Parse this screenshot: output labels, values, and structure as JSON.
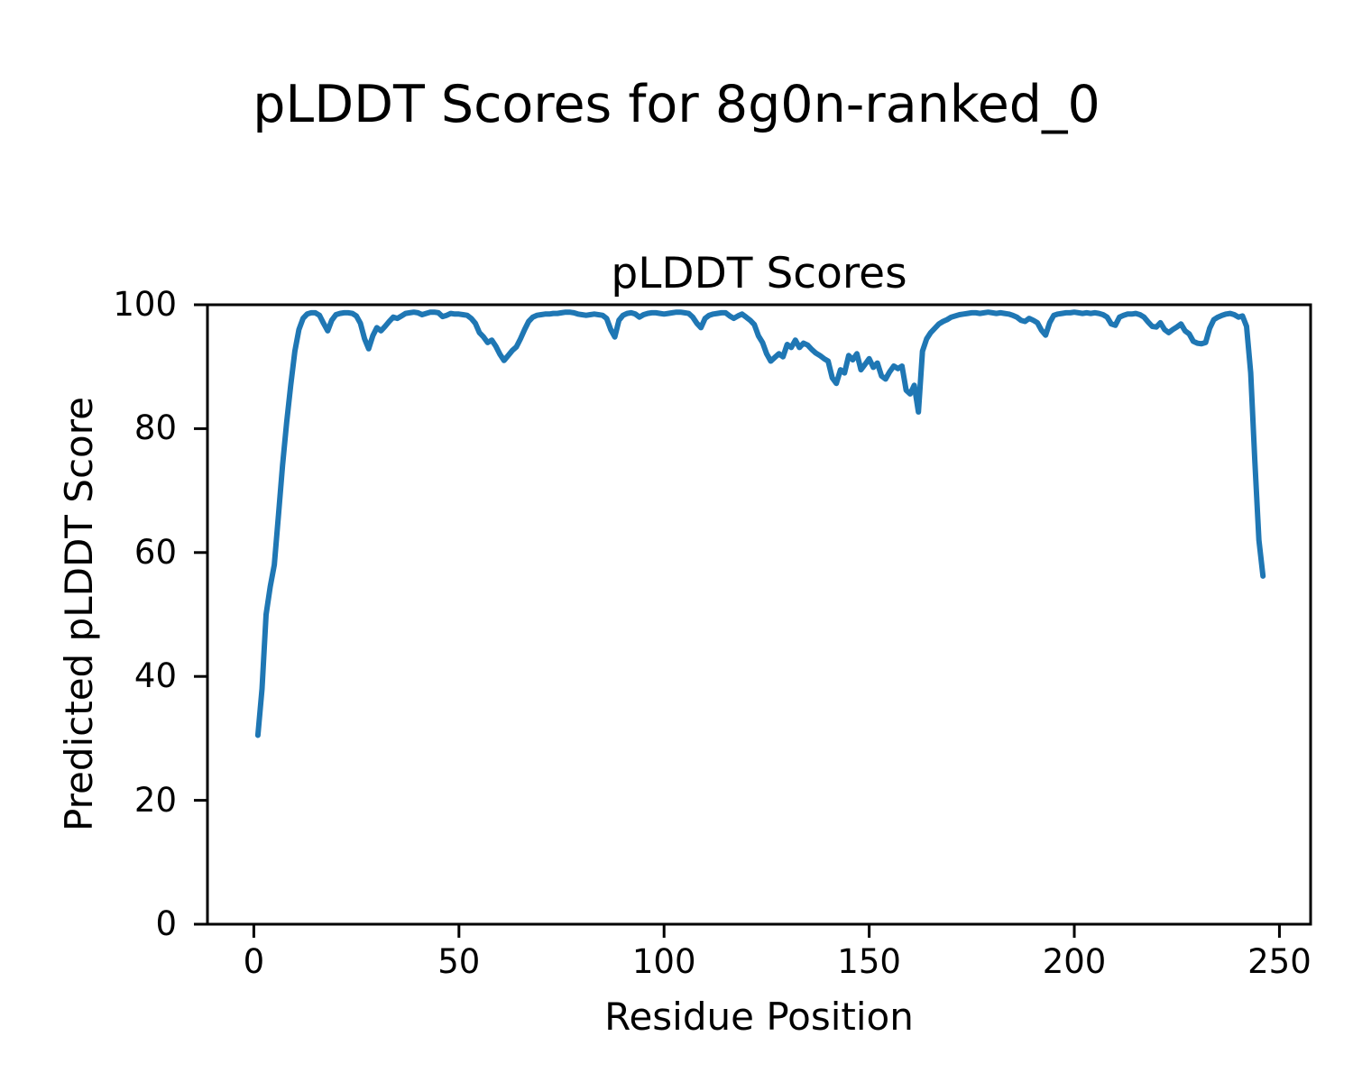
{
  "figure": {
    "suptitle": "pLDDT Scores for 8g0n-ranked_0",
    "background_color": "#ffffff",
    "text_color": "#000000",
    "spine_color": "#000000"
  },
  "chart_data": {
    "type": "line",
    "title": "pLDDT Scores",
    "suptitle": "pLDDT Scores for 8g0n-ranked_0",
    "xlabel": "Residue Position",
    "ylabel": "Predicted pLDDT Score",
    "xlim": [
      -11.3,
      257.6
    ],
    "ylim": [
      0,
      100
    ],
    "xticks": [
      0,
      50,
      100,
      150,
      200,
      250
    ],
    "yticks": [
      0,
      20,
      40,
      60,
      80,
      100
    ],
    "grid": false,
    "legend": null,
    "series": [
      {
        "name": "pLDDT",
        "color": "#1f77b4",
        "line_width": 6,
        "x_start": 1,
        "x_step": 1,
        "values": [
          30.5,
          38.0,
          50.0,
          54.5,
          58.0,
          66.0,
          74.0,
          81.0,
          87.0,
          92.5,
          96.0,
          97.8,
          98.5,
          98.7,
          98.7,
          98.3,
          97.0,
          95.8,
          97.5,
          98.4,
          98.6,
          98.7,
          98.7,
          98.6,
          98.2,
          97.0,
          94.5,
          92.9,
          95.0,
          96.3,
          95.8,
          96.5,
          97.3,
          98.0,
          97.8,
          98.2,
          98.6,
          98.7,
          98.8,
          98.7,
          98.4,
          98.6,
          98.8,
          98.8,
          98.7,
          98.1,
          98.3,
          98.6,
          98.5,
          98.5,
          98.4,
          98.3,
          97.8,
          97.0,
          95.5,
          94.8,
          93.9,
          94.3,
          93.3,
          92.0,
          91.0,
          91.8,
          92.6,
          93.2,
          94.5,
          96.0,
          97.3,
          98.0,
          98.3,
          98.4,
          98.5,
          98.5,
          98.6,
          98.6,
          98.7,
          98.8,
          98.8,
          98.7,
          98.5,
          98.4,
          98.3,
          98.4,
          98.5,
          98.4,
          98.3,
          97.8,
          96.0,
          94.8,
          97.5,
          98.3,
          98.6,
          98.7,
          98.5,
          98.0,
          98.4,
          98.6,
          98.7,
          98.7,
          98.6,
          98.5,
          98.6,
          98.7,
          98.8,
          98.8,
          98.7,
          98.6,
          98.0,
          97.0,
          96.3,
          97.8,
          98.3,
          98.5,
          98.6,
          98.7,
          98.7,
          98.2,
          97.8,
          98.2,
          98.5,
          98.0,
          97.5,
          96.8,
          95.0,
          93.9,
          92.1,
          90.9,
          91.5,
          92.1,
          91.6,
          93.6,
          93.1,
          94.3,
          93.1,
          93.8,
          93.5,
          92.8,
          92.2,
          91.8,
          91.3,
          90.9,
          88.2,
          87.3,
          89.5,
          89.0,
          91.8,
          91.1,
          92.1,
          89.5,
          90.4,
          91.3,
          89.9,
          90.6,
          88.5,
          88.0,
          89.2,
          90.1,
          89.7,
          90.1,
          86.2,
          85.6,
          87.0,
          82.7,
          92.5,
          94.5,
          95.5,
          96.2,
          96.9,
          97.3,
          97.6,
          98.0,
          98.2,
          98.4,
          98.5,
          98.6,
          98.7,
          98.7,
          98.6,
          98.7,
          98.8,
          98.7,
          98.6,
          98.7,
          98.6,
          98.5,
          98.3,
          98.0,
          97.5,
          97.3,
          97.8,
          97.5,
          97.1,
          95.9,
          95.1,
          97.1,
          98.3,
          98.5,
          98.6,
          98.7,
          98.7,
          98.8,
          98.7,
          98.6,
          98.7,
          98.6,
          98.7,
          98.6,
          98.4,
          98.0,
          96.9,
          96.7,
          98.0,
          98.3,
          98.5,
          98.5,
          98.6,
          98.4,
          98.0,
          97.2,
          96.5,
          96.4,
          97.1,
          96.0,
          95.5,
          96.0,
          96.4,
          96.9,
          95.8,
          95.3,
          94.1,
          93.8,
          93.7,
          93.9,
          96.2,
          97.6,
          98.0,
          98.3,
          98.5,
          98.6,
          98.4,
          98.0,
          98.2,
          96.5,
          89.0,
          75.0,
          62.0,
          56.2
        ]
      }
    ]
  }
}
